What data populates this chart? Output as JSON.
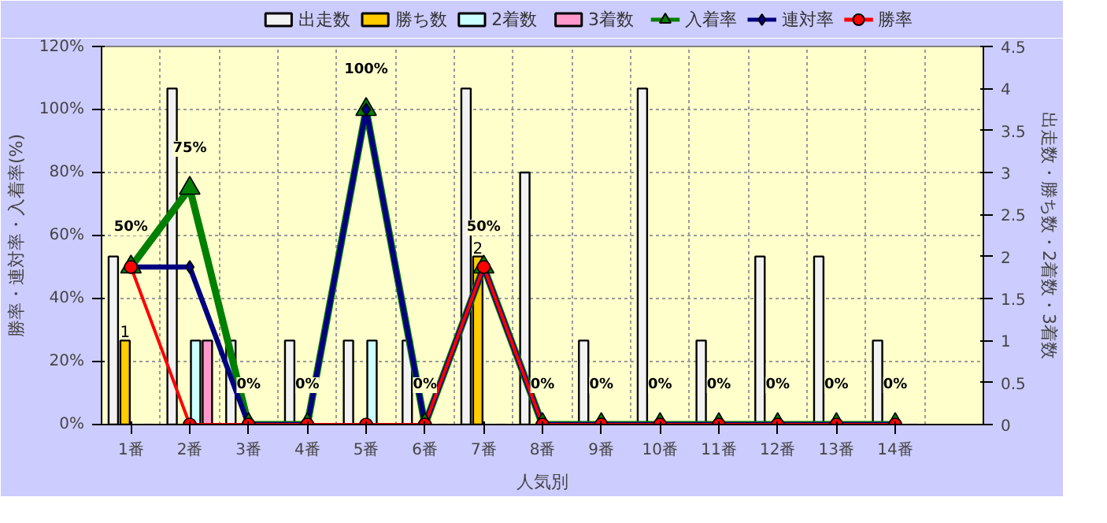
{
  "chart_data": {
    "type": "bar",
    "categories": [
      "1番",
      "2番",
      "3番",
      "4番",
      "5番",
      "6番",
      "7番",
      "8番",
      "9番",
      "10番",
      "11番",
      "12番",
      "13番",
      "14番",
      null
    ],
    "xlabel": "人気別",
    "ylabel": "勝率・連対率・入着率(%)",
    "y2label": "出走数・勝ち数・2着数・3着数",
    "ylim": [
      0,
      120
    ],
    "yticks": [
      {
        "value": 0,
        "label": "0%"
      },
      {
        "value": 20,
        "label": "20%"
      },
      {
        "value": 40,
        "label": "40%"
      },
      {
        "value": 60,
        "label": "60%"
      },
      {
        "value": 80,
        "label": "80%"
      },
      {
        "value": 100,
        "label": "100%"
      },
      {
        "value": 120,
        "label": "120%"
      }
    ],
    "y2lim": [
      0,
      4.5
    ],
    "y2ticks": [
      0,
      0.5,
      1,
      1.5,
      2,
      2.5,
      3,
      3.5,
      4,
      4.5
    ],
    "grid": true,
    "legend": "top",
    "series": [
      {
        "name": "出走数",
        "axis": "y2",
        "color": "#f2f2f2",
        "values": [
          2,
          4,
          1,
          1,
          1,
          1,
          4,
          3,
          1,
          4,
          1,
          2,
          2,
          1,
          null
        ]
      },
      {
        "name": "勝ち数",
        "axis": "y2",
        "color": "#ffcc00",
        "values": [
          1,
          0,
          0,
          0,
          0,
          0,
          2,
          0,
          0,
          0,
          0,
          0,
          0,
          0,
          null
        ],
        "value_labels": [
          "1",
          null,
          null,
          null,
          null,
          null,
          "2",
          null,
          null,
          null,
          null,
          null,
          null,
          null,
          null
        ]
      },
      {
        "name": "2着数",
        "axis": "y2",
        "color": "#ccffff",
        "values": [
          0,
          1,
          0,
          0,
          1,
          0,
          0,
          0,
          0,
          0,
          0,
          0,
          0,
          0,
          null
        ]
      },
      {
        "name": "3着数",
        "axis": "y2",
        "color": "#ff99cc",
        "values": [
          0,
          1,
          0,
          0,
          0,
          0,
          0,
          0,
          0,
          0,
          0,
          0,
          0,
          0,
          null
        ]
      },
      {
        "name": "入着率",
        "type": "line",
        "marker": "triangle",
        "color": "#008000",
        "values": [
          50,
          75,
          0,
          0,
          100,
          0,
          50,
          0,
          0,
          0,
          0,
          0,
          0,
          0,
          null
        ],
        "value_labels": [
          "50%",
          "75%",
          "0%",
          "0%",
          "100%",
          "0%",
          "50%",
          "0%",
          "0%",
          "0%",
          "0%",
          "0%",
          "0%",
          "0%",
          null
        ]
      },
      {
        "name": "連対率",
        "type": "line",
        "marker": "diamond",
        "color": "#000080",
        "values": [
          50,
          50,
          0,
          0,
          100,
          0,
          50,
          0,
          0,
          0,
          0,
          0,
          0,
          0,
          null
        ]
      },
      {
        "name": "勝率",
        "type": "line",
        "marker": "circle",
        "color": "#ff0000",
        "values": [
          50,
          0,
          0,
          0,
          0,
          0,
          50,
          0,
          0,
          0,
          0,
          0,
          0,
          0,
          null
        ]
      }
    ]
  }
}
